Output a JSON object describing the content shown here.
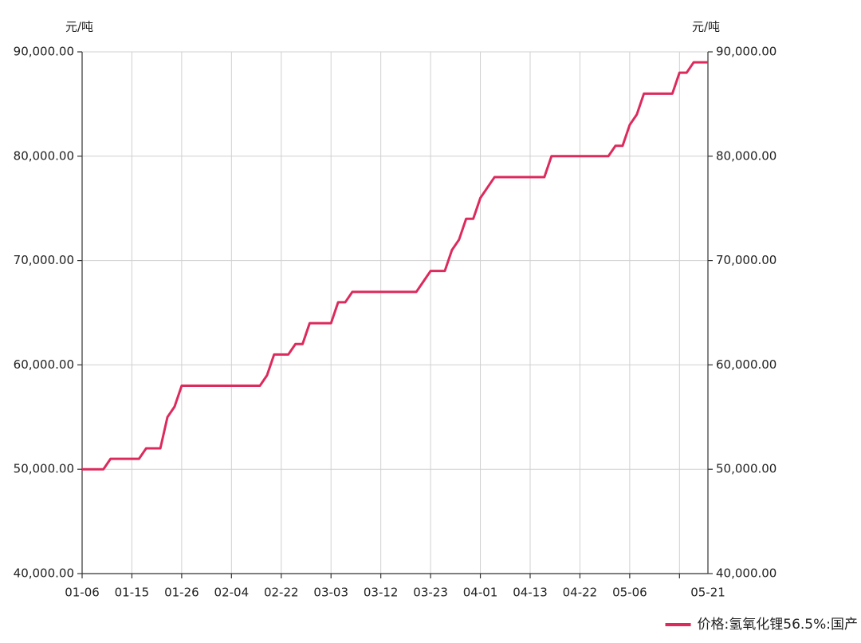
{
  "chart_data": {
    "type": "line",
    "y_label": "元/吨",
    "y2_label": "元/吨",
    "categories": [
      "01-06",
      null,
      null,
      null,
      null,
      null,
      null,
      "01-15",
      null,
      null,
      null,
      null,
      null,
      null,
      "01-26",
      null,
      null,
      null,
      null,
      null,
      null,
      "02-04",
      null,
      null,
      null,
      null,
      null,
      null,
      "02-22",
      null,
      null,
      null,
      null,
      null,
      null,
      "03-03",
      null,
      null,
      null,
      null,
      null,
      null,
      "03-12",
      null,
      null,
      null,
      null,
      null,
      null,
      "03-23",
      null,
      null,
      null,
      null,
      null,
      null,
      "04-01",
      null,
      null,
      null,
      null,
      null,
      null,
      "04-13",
      null,
      null,
      null,
      null,
      null,
      null,
      "04-22",
      null,
      null,
      null,
      null,
      null,
      null,
      "05-06",
      null,
      null,
      null,
      null,
      null,
      null,
      null,
      null,
      null,
      null,
      "05-21"
    ],
    "series": [
      {
        "name": "价格:氢氧化锂56.5%:国产",
        "color": "#dc2a5c",
        "values": [
          50000,
          50000,
          50000,
          50000,
          51000,
          51000,
          51000,
          51000,
          51000,
          52000,
          52000,
          52000,
          55000,
          56000,
          58000,
          58000,
          58000,
          58000,
          58000,
          58000,
          58000,
          58000,
          58000,
          58000,
          58000,
          58000,
          59000,
          61000,
          61000,
          61000,
          62000,
          62000,
          64000,
          64000,
          64000,
          64000,
          66000,
          66000,
          67000,
          67000,
          67000,
          67000,
          67000,
          67000,
          67000,
          67000,
          67000,
          67000,
          68000,
          69000,
          69000,
          69000,
          71000,
          72000,
          74000,
          74000,
          76000,
          77000,
          78000,
          78000,
          78000,
          78000,
          78000,
          78000,
          78000,
          78000,
          80000,
          80000,
          80000,
          80000,
          80000,
          80000,
          80000,
          80000,
          80000,
          81000,
          81000,
          83000,
          84000,
          86000,
          86000,
          86000,
          86000,
          86000,
          88000,
          88000,
          89000,
          89000,
          89000
        ]
      }
    ],
    "ylim": [
      40000,
      90000
    ],
    "yticks": [
      {
        "value": 40000,
        "label": "40,000.00"
      },
      {
        "value": 50000,
        "label": "50,000.00"
      },
      {
        "value": 60000,
        "label": "60,000.00"
      },
      {
        "value": 70000,
        "label": "70,000.00"
      },
      {
        "value": 80000,
        "label": "80,000.00"
      },
      {
        "value": 90000,
        "label": "90,000.00"
      }
    ],
    "y2lim": [
      40000,
      90000
    ],
    "y2ticks": [
      {
        "value": 40000,
        "label": "40,000.00"
      },
      {
        "value": 50000,
        "label": "50,000.00"
      },
      {
        "value": 60000,
        "label": "60,000.00"
      },
      {
        "value": 70000,
        "label": "70,000.00"
      },
      {
        "value": 80000,
        "label": "80,000.00"
      },
      {
        "value": 90000,
        "label": "90,000.00"
      }
    ],
    "grid": true,
    "legend": "bottom-right"
  }
}
